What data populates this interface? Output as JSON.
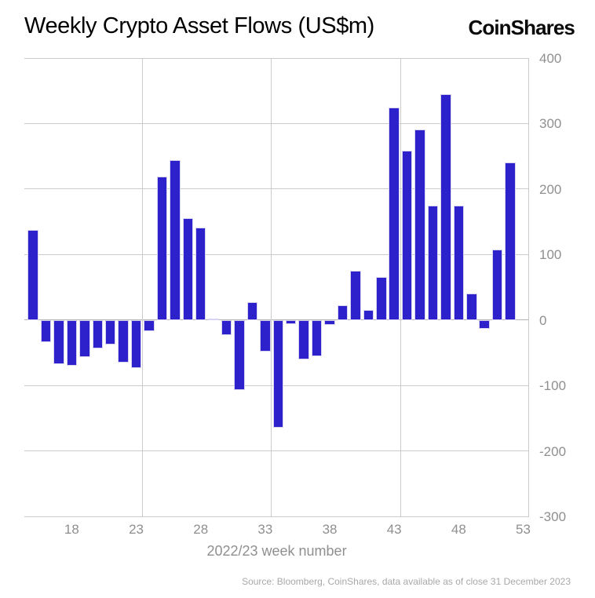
{
  "header": {
    "title": "Weekly Crypto Asset Flows (US$m)",
    "logo": "CoinShares"
  },
  "chart_data": {
    "type": "bar",
    "title": "Weekly Crypto Asset Flows (US$m)",
    "xlabel": "2022/23 week number",
    "ylabel": "",
    "x": [
      15,
      16,
      17,
      18,
      19,
      20,
      21,
      22,
      23,
      24,
      25,
      26,
      27,
      28,
      29,
      30,
      31,
      32,
      33,
      34,
      35,
      36,
      37,
      38,
      39,
      40,
      41,
      42,
      43,
      44,
      45,
      46,
      47,
      48,
      49,
      50,
      51,
      52
    ],
    "values": [
      137,
      -34,
      -67,
      -70,
      -57,
      -43,
      -38,
      -65,
      -73,
      -17,
      219,
      244,
      155,
      141,
      2,
      -23,
      -107,
      27,
      -48,
      -165,
      -6,
      -60,
      -55,
      -7,
      22,
      75,
      15,
      66,
      324,
      259,
      291,
      175,
      345,
      175,
      41,
      -13,
      108,
      241
    ],
    "xlim": [
      13.87,
      53
    ],
    "ylim": [
      -300,
      400
    ],
    "y_ticks": [
      400,
      300,
      200,
      100,
      0,
      -100,
      -200,
      -300
    ],
    "x_ticks": [
      18,
      23,
      28,
      33,
      38,
      43,
      48,
      53
    ],
    "x_gridlines": [
      23,
      33,
      43,
      53
    ],
    "grid": "on",
    "legend": "none",
    "bar_color": "#2c21cb",
    "bar_border_color": "#d8d3f1",
    "grid_color": "#cbcbcb",
    "axis_text_color": "#8f8f8f"
  },
  "footer": {
    "source": "Source: Bloomberg, CoinShares, data available as of close 31 December 2023"
  }
}
